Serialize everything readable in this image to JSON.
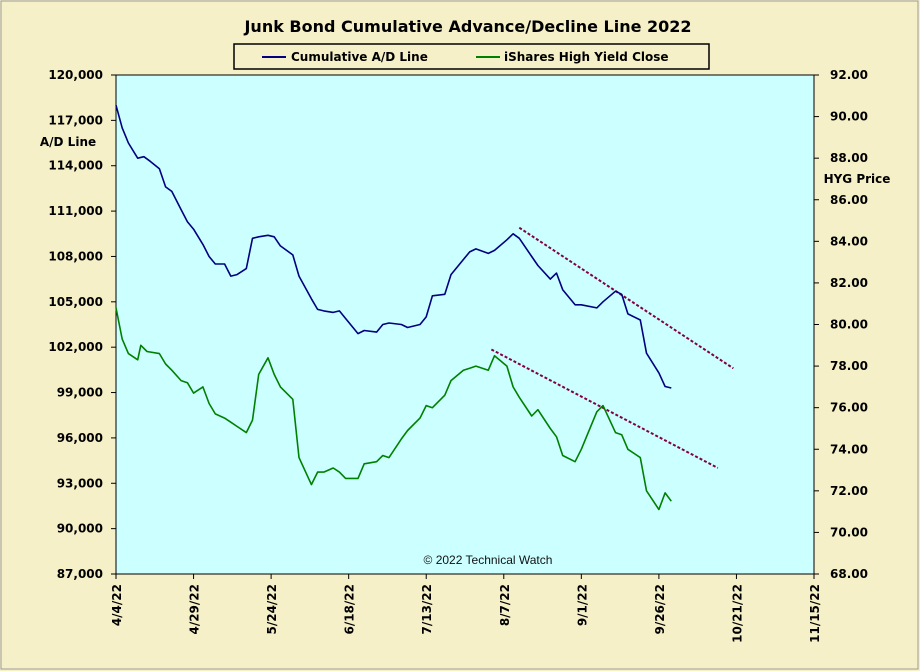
{
  "chart_data": {
    "type": "line",
    "title": "Junk Bond Cumulative  Advance/Decline  Line  2022",
    "watermark": "© 2022 Technical Watch",
    "ylabel_left": "A/D Line",
    "ylabel_right": "HYG Price",
    "ylim_left": [
      87000,
      120000
    ],
    "ylim_right": [
      68,
      92
    ],
    "yticks_left": [
      "120,000",
      "117,000",
      "114,000",
      "111,000",
      "108,000",
      "105,000",
      "102,000",
      "99,000",
      "96,000",
      "93,000",
      "90,000",
      "87,000"
    ],
    "yticks_right": [
      "92.00",
      "90.00",
      "88.00",
      "86.00",
      "84.00",
      "82.00",
      "80.00",
      "78.00",
      "76.00",
      "74.00",
      "72.00",
      "70.00",
      "68.00"
    ],
    "x_ticks": [
      "4/4/22",
      "4/29/22",
      "5/24/22",
      "6/18/22",
      "7/13/22",
      "8/7/22",
      "9/1/22",
      "9/26/22",
      "10/21/22",
      "11/15/22"
    ],
    "xlim": [
      "2022-04-04",
      "2022-11-15"
    ],
    "grid": false,
    "legend_position": "top-center",
    "background_color": "#ccffff",
    "frame_color": "#f5f0c8",
    "series": [
      {
        "name": "Cumulative A/D Line",
        "axis": "left",
        "color": "#000080",
        "x": [
          "2022-04-04",
          "2022-04-06",
          "2022-04-08",
          "2022-04-11",
          "2022-04-13",
          "2022-04-15",
          "2022-04-18",
          "2022-04-20",
          "2022-04-22",
          "2022-04-25",
          "2022-04-27",
          "2022-04-29",
          "2022-05-02",
          "2022-05-04",
          "2022-05-06",
          "2022-05-09",
          "2022-05-11",
          "2022-05-13",
          "2022-05-16",
          "2022-05-18",
          "2022-05-20",
          "2022-05-23",
          "2022-05-25",
          "2022-05-27",
          "2022-05-31",
          "2022-06-02",
          "2022-06-06",
          "2022-06-08",
          "2022-06-10",
          "2022-06-13",
          "2022-06-15",
          "2022-06-17",
          "2022-06-21",
          "2022-06-23",
          "2022-06-27",
          "2022-06-29",
          "2022-07-01",
          "2022-07-05",
          "2022-07-07",
          "2022-07-11",
          "2022-07-13",
          "2022-07-15",
          "2022-07-19",
          "2022-07-21",
          "2022-07-25",
          "2022-07-27",
          "2022-07-29",
          "2022-08-02",
          "2022-08-04",
          "2022-08-08",
          "2022-08-10",
          "2022-08-12",
          "2022-08-16",
          "2022-08-18",
          "2022-08-22",
          "2022-08-24",
          "2022-08-26",
          "2022-08-30",
          "2022-09-01",
          "2022-09-06",
          "2022-09-08",
          "2022-09-12",
          "2022-09-14",
          "2022-09-16",
          "2022-09-20",
          "2022-09-22",
          "2022-09-26",
          "2022-09-28",
          "2022-09-30"
        ],
        "values": [
          118000,
          116500,
          115500,
          114500,
          114600,
          114300,
          113800,
          112600,
          112300,
          111100,
          110300,
          109800,
          108800,
          108000,
          107500,
          107500,
          106700,
          106800,
          107200,
          109200,
          109300,
          109400,
          109300,
          108700,
          108100,
          106700,
          105200,
          104500,
          104400,
          104300,
          104400,
          103900,
          102900,
          103100,
          103000,
          103500,
          103600,
          103500,
          103300,
          103500,
          104000,
          105400,
          105500,
          106800,
          107800,
          108300,
          108500,
          108200,
          108400,
          109100,
          109500,
          109200,
          108000,
          107400,
          106500,
          106900,
          105800,
          104800,
          104800,
          104600,
          105000,
          105700,
          105500,
          104200,
          103800,
          101600,
          100300,
          99400,
          99300
        ]
      },
      {
        "name": "iShares High Yield Close",
        "axis": "right",
        "color": "#008000",
        "x": [
          "2022-04-04",
          "2022-04-06",
          "2022-04-08",
          "2022-04-11",
          "2022-04-12",
          "2022-04-14",
          "2022-04-18",
          "2022-04-20",
          "2022-04-22",
          "2022-04-25",
          "2022-04-27",
          "2022-04-29",
          "2022-05-02",
          "2022-05-04",
          "2022-05-06",
          "2022-05-09",
          "2022-05-11",
          "2022-05-13",
          "2022-05-16",
          "2022-05-18",
          "2022-05-20",
          "2022-05-23",
          "2022-05-25",
          "2022-05-27",
          "2022-05-31",
          "2022-06-02",
          "2022-06-06",
          "2022-06-08",
          "2022-06-10",
          "2022-06-13",
          "2022-06-15",
          "2022-06-17",
          "2022-06-21",
          "2022-06-23",
          "2022-06-27",
          "2022-06-29",
          "2022-07-01",
          "2022-07-05",
          "2022-07-07",
          "2022-07-11",
          "2022-07-13",
          "2022-07-15",
          "2022-07-19",
          "2022-07-21",
          "2022-07-25",
          "2022-07-27",
          "2022-07-29",
          "2022-08-02",
          "2022-08-04",
          "2022-08-08",
          "2022-08-10",
          "2022-08-12",
          "2022-08-16",
          "2022-08-18",
          "2022-08-22",
          "2022-08-24",
          "2022-08-26",
          "2022-08-30",
          "2022-09-01",
          "2022-09-06",
          "2022-09-08",
          "2022-09-12",
          "2022-09-14",
          "2022-09-16",
          "2022-09-20",
          "2022-09-22",
          "2022-09-26",
          "2022-09-28",
          "2022-09-30"
        ],
        "values": [
          80.8,
          79.3,
          78.6,
          78.3,
          79.0,
          78.7,
          78.6,
          78.1,
          77.8,
          77.3,
          77.2,
          76.7,
          77.0,
          76.2,
          75.7,
          75.5,
          75.3,
          75.1,
          74.8,
          75.4,
          77.6,
          78.4,
          77.6,
          77.0,
          76.4,
          73.6,
          72.3,
          72.9,
          72.9,
          73.1,
          72.9,
          72.6,
          72.6,
          73.3,
          73.4,
          73.7,
          73.6,
          74.5,
          74.9,
          75.5,
          76.1,
          76.0,
          76.6,
          77.3,
          77.8,
          77.9,
          78.0,
          77.8,
          78.5,
          78.0,
          77.0,
          76.5,
          75.6,
          75.9,
          75.0,
          74.6,
          73.7,
          73.4,
          74.0,
          75.8,
          76.1,
          74.8,
          74.7,
          74.0,
          73.6,
          72.0,
          71.1,
          71.9,
          71.5
        ]
      }
    ],
    "trendlines": [
      {
        "axis": "left",
        "color": "#800040",
        "style": "dashed",
        "x": [
          "2022-08-12",
          "2022-10-20"
        ],
        "values": [
          109900,
          100600
        ]
      },
      {
        "axis": "right",
        "color": "#800040",
        "style": "dashed",
        "x": [
          "2022-08-03",
          "2022-10-15"
        ],
        "values": [
          78.8,
          73.1
        ]
      }
    ]
  }
}
